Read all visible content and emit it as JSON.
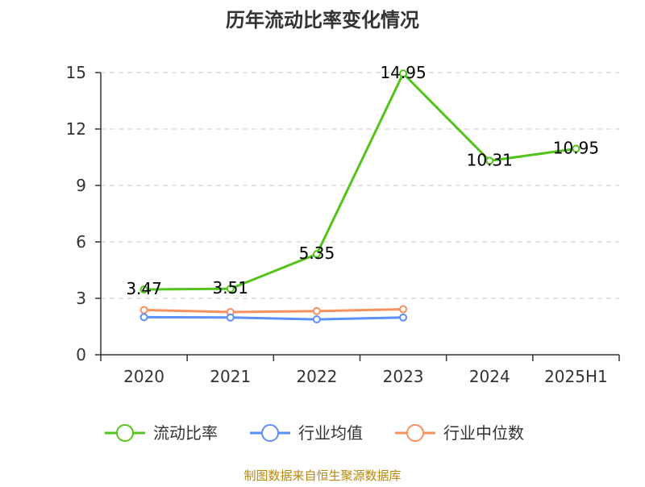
{
  "chart_data": {
    "type": "line",
    "title": "历年流动比率变化情况",
    "categories": [
      "2020",
      "2021",
      "2022",
      "2023",
      "2024",
      "2025H1"
    ],
    "y_ticks": [
      "0",
      "3",
      "6",
      "9",
      "12",
      "15"
    ],
    "ylim": [
      0,
      15
    ],
    "grid": "horizontal dashed",
    "legend_position": "bottom",
    "series": [
      {
        "name": "流动比率",
        "color": "#52c41a",
        "values": [
          3.47,
          3.51,
          5.35,
          14.95,
          10.31,
          10.95
        ],
        "data_labels": [
          "3.47",
          "3.51",
          "5.35",
          "14.95",
          "10.31",
          "10.95"
        ]
      },
      {
        "name": "行业均值",
        "color": "#5b8ff9",
        "values": [
          2.0,
          1.98,
          1.88,
          1.98,
          null,
          null
        ]
      },
      {
        "name": "行业中位数",
        "color": "#f6925f",
        "values": [
          2.38,
          2.27,
          2.32,
          2.42,
          null,
          null
        ]
      }
    ]
  },
  "source_note": "制图数据来自恒生聚源数据库"
}
